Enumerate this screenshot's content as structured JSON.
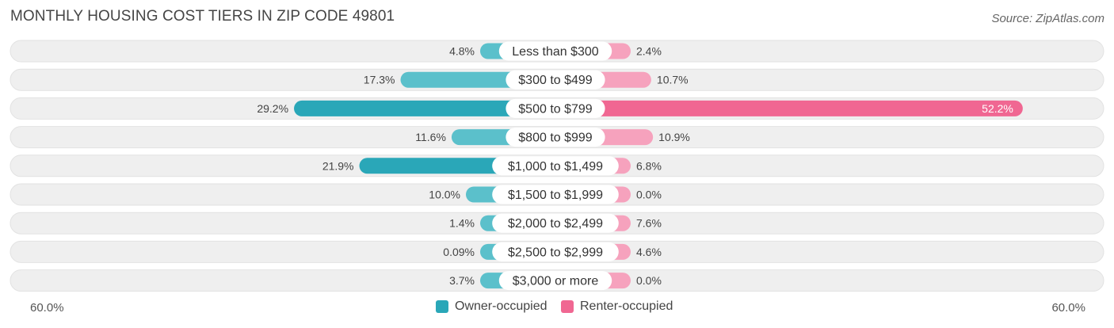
{
  "title": "MONTHLY HOUSING COST TIERS IN ZIP CODE 49801",
  "source": "Source: ZipAtlas.com",
  "axis": {
    "left_label": "60.0%",
    "right_label": "60.0%"
  },
  "colors": {
    "owner": "#5bc0cb",
    "owner_strong": "#2aa7b8",
    "renter": "#f6a2bd",
    "renter_strong": "#f06792",
    "row_bg": "#efefef"
  },
  "legend": {
    "owner": "Owner-occupied",
    "renter": "Renter-occupied"
  },
  "chart_data": {
    "type": "bar",
    "orientation": "diverging-horizontal",
    "title": "MONTHLY HOUSING COST TIERS IN ZIP CODE 49801",
    "xlim": [
      -60,
      60
    ],
    "categories": [
      "Less than $300",
      "$300 to $499",
      "$500 to $799",
      "$800 to $999",
      "$1,000 to $1,499",
      "$1,500 to $1,999",
      "$2,000 to $2,499",
      "$2,500 to $2,999",
      "$3,000 or more"
    ],
    "series": [
      {
        "name": "Owner-occupied",
        "values": [
          4.8,
          17.3,
          29.2,
          11.6,
          21.9,
          10.0,
          1.4,
          0.09,
          3.7
        ],
        "labels": [
          "4.8%",
          "17.3%",
          "29.2%",
          "11.6%",
          "21.9%",
          "10.0%",
          "1.4%",
          "0.09%",
          "3.7%"
        ]
      },
      {
        "name": "Renter-occupied",
        "values": [
          2.4,
          10.7,
          52.2,
          10.9,
          6.8,
          0.0,
          7.6,
          4.6,
          0.0
        ],
        "labels": [
          "2.4%",
          "10.7%",
          "52.2%",
          "10.9%",
          "6.8%",
          "0.0%",
          "7.6%",
          "4.6%",
          "0.0%"
        ]
      }
    ],
    "legend_position": "bottom-center"
  }
}
